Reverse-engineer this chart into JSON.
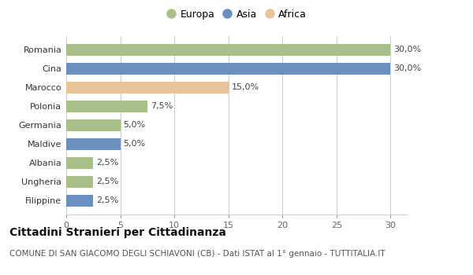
{
  "categories": [
    "Filippine",
    "Ungheria",
    "Albania",
    "Maldive",
    "Germania",
    "Polonia",
    "Marocco",
    "Cina",
    "Romania"
  ],
  "values": [
    2.5,
    2.5,
    2.5,
    5.0,
    5.0,
    7.5,
    15.0,
    30.0,
    30.0
  ],
  "colors": [
    "#6b8fbe",
    "#a8bf8a",
    "#a8bf8a",
    "#6b8fbe",
    "#a8bf8a",
    "#a8bf8a",
    "#e8c49a",
    "#6b8fbe",
    "#a8bf8a"
  ],
  "legend": [
    {
      "label": "Europa",
      "color": "#a8bf8a"
    },
    {
      "label": "Asia",
      "color": "#6b8fbe"
    },
    {
      "label": "Africa",
      "color": "#e8c49a"
    }
  ],
  "xlim": [
    0,
    31.5
  ],
  "xticks": [
    0,
    5,
    10,
    15,
    20,
    25,
    30
  ],
  "title": "Cittadini Stranieri per Cittadinanza",
  "subtitle": "COMUNE DI SAN GIACOMO DEGLI SCHIAVONI (CB) - Dati ISTAT al 1° gennaio - TUTTITALIA.IT",
  "value_labels": [
    "2,5%",
    "2,5%",
    "2,5%",
    "5,0%",
    "5,0%",
    "7,5%",
    "15,0%",
    "30,0%",
    "30,0%"
  ],
  "bg_color": "#ffffff",
  "grid_color": "#cccccc",
  "bar_height": 0.62,
  "title_fontsize": 10,
  "subtitle_fontsize": 7.5,
  "label_fontsize": 8,
  "tick_fontsize": 8,
  "value_fontsize": 8,
  "legend_fontsize": 9
}
